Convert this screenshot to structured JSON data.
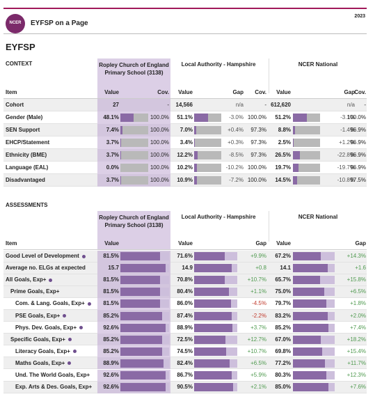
{
  "header": {
    "logo": "NCER",
    "title": "EYFSP on a Page",
    "year": "2023"
  },
  "page_title": "EYFSP",
  "columns": {
    "item": "Item",
    "value": "Value",
    "cov": "Cov.",
    "gap": "Gap"
  },
  "groups": {
    "school": "Ropley Church of England Primary School (3138)",
    "la": "Local Authority - Hampshire",
    "nat": "NCER National"
  },
  "context": {
    "section": "CONTEXT",
    "scale": [
      0,
      100
    ],
    "cohort": {
      "label": "Cohort",
      "school": 27,
      "school_cov": "-",
      "la": {
        "value": 14566,
        "label": "14,566"
      },
      "la_gap": "n/a",
      "la_cov": "-",
      "nat": {
        "value": 612620,
        "label": "612,620"
      },
      "nat_gap": "n/a",
      "nat_cov": "-"
    },
    "rows": [
      {
        "label": "Gender (Male)",
        "school": {
          "value": 48.1,
          "label": "48.1%"
        },
        "school_cov": {
          "value": 100.0,
          "label": "100.0%"
        },
        "la": {
          "value": 51.1,
          "label": "51.1%"
        },
        "la_gap": {
          "value": -3.0,
          "label": "-3.0%"
        },
        "la_cov": {
          "value": 100.0,
          "label": "100.0%"
        },
        "nat": {
          "value": 51.2,
          "label": "51.2%"
        },
        "nat_gap": {
          "value": -3.1,
          "label": "-3.1%"
        },
        "nat_cov": {
          "value": 100.0,
          "label": "100.0%"
        }
      },
      {
        "label": "SEN Support",
        "school": {
          "value": 7.4,
          "label": "7.4%"
        },
        "school_cov": {
          "value": 100.0,
          "label": "100.0%"
        },
        "la": {
          "value": 7.0,
          "label": "7.0%"
        },
        "la_gap": {
          "value": 0.4,
          "label": "+0.4%"
        },
        "la_cov": {
          "value": 97.3,
          "label": "97.3%"
        },
        "nat": {
          "value": 8.8,
          "label": "8.8%"
        },
        "nat_gap": {
          "value": -1.4,
          "label": "-1.4%"
        },
        "nat_cov": {
          "value": 96.9,
          "label": "96.9%"
        }
      },
      {
        "label": "EHCP/Statement",
        "school": {
          "value": 3.7,
          "label": "3.7%"
        },
        "school_cov": {
          "value": 100.0,
          "label": "100.0%"
        },
        "la": {
          "value": 3.4,
          "label": "3.4%"
        },
        "la_gap": {
          "value": 0.3,
          "label": "+0.3%"
        },
        "la_cov": {
          "value": 97.3,
          "label": "97.3%"
        },
        "nat": {
          "value": 2.5,
          "label": "2.5%"
        },
        "nat_gap": {
          "value": 1.2,
          "label": "+1.2%"
        },
        "nat_cov": {
          "value": 96.9,
          "label": "96.9%"
        }
      },
      {
        "label": "Ethnicity (BME)",
        "school": {
          "value": 3.7,
          "label": "3.7%"
        },
        "school_cov": {
          "value": 100.0,
          "label": "100.0%"
        },
        "la": {
          "value": 12.2,
          "label": "12.2%"
        },
        "la_gap": {
          "value": -8.5,
          "label": "-8.5%"
        },
        "la_cov": {
          "value": 97.3,
          "label": "97.3%"
        },
        "nat": {
          "value": 26.5,
          "label": "26.5%"
        },
        "nat_gap": {
          "value": -22.8,
          "label": "-22.8%"
        },
        "nat_cov": {
          "value": 96.9,
          "label": "96.9%"
        }
      },
      {
        "label": "Language (EAL)",
        "school": {
          "value": 0.0,
          "label": "0.0%"
        },
        "school_cov": {
          "value": 100.0,
          "label": "100.0%"
        },
        "la": {
          "value": 10.2,
          "label": "10.2%"
        },
        "la_gap": {
          "value": -10.2,
          "label": "-10.2%"
        },
        "la_cov": {
          "value": 100.0,
          "label": "100.0%"
        },
        "nat": {
          "value": 19.7,
          "label": "19.7%"
        },
        "nat_gap": {
          "value": -19.7,
          "label": "-19.7%"
        },
        "nat_cov": {
          "value": 96.9,
          "label": "96.9%"
        }
      },
      {
        "label": "Disadvantaged",
        "school": {
          "value": 3.7,
          "label": "3.7%"
        },
        "school_cov": {
          "value": 100.0,
          "label": "100.0%"
        },
        "la": {
          "value": 10.9,
          "label": "10.9%"
        },
        "la_gap": {
          "value": -7.2,
          "label": "-7.2%"
        },
        "la_cov": {
          "value": 100.0,
          "label": "100.0%"
        },
        "nat": {
          "value": 14.5,
          "label": "14.5%"
        },
        "nat_gap": {
          "value": -10.8,
          "label": "-10.8%"
        },
        "nat_cov": {
          "value": 97.5,
          "label": "97.5%"
        }
      }
    ]
  },
  "assessments": {
    "section": "ASSESSMENTS",
    "scale": [
      0,
      100
    ],
    "rows": [
      {
        "label": "Good Level of Development",
        "level": 0,
        "dot": true,
        "school": {
          "value": 81.5,
          "label": "81.5%"
        },
        "la": {
          "value": 71.6,
          "label": "71.6%"
        },
        "la_gap": {
          "value": 9.9,
          "label": "+9.9%"
        },
        "nat": {
          "value": 67.2,
          "label": "67.2%"
        },
        "nat_gap": {
          "value": 14.3,
          "label": "+14.3%"
        }
      },
      {
        "label": "Average no. ELGs at expected",
        "level": 0,
        "dot": false,
        "scale": [
          0,
          17
        ],
        "school": 15.7,
        "la": 14.9,
        "la_gap": {
          "value": 0.8,
          "label": "+0.8"
        },
        "nat": 14.1,
        "nat_gap": {
          "value": 1.6,
          "label": "+1.6"
        }
      },
      {
        "label": "All Goals, Exp+",
        "level": 0,
        "dot": true,
        "school": {
          "value": 81.5,
          "label": "81.5%"
        },
        "la": {
          "value": 70.8,
          "label": "70.8%"
        },
        "la_gap": {
          "value": 10.7,
          "label": "+10.7%"
        },
        "nat": {
          "value": 65.7,
          "label": "65.7%"
        },
        "nat_gap": {
          "value": 15.8,
          "label": "+15.8%"
        }
      },
      {
        "label": "Prime Goals, Exp+",
        "level": 1,
        "dot": false,
        "school": {
          "value": 81.5,
          "label": "81.5%"
        },
        "la": {
          "value": 80.4,
          "label": "80.4%"
        },
        "la_gap": {
          "value": 1.1,
          "label": "+1.1%"
        },
        "nat": {
          "value": 75.0,
          "label": "75.0%"
        },
        "nat_gap": {
          "value": 6.5,
          "label": "+6.5%"
        }
      },
      {
        "label": "Com. & Lang. Goals, Exp+",
        "level": 2,
        "dot": true,
        "school": {
          "value": 81.5,
          "label": "81.5%"
        },
        "la": {
          "value": 86.0,
          "label": "86.0%"
        },
        "la_gap": {
          "value": -4.5,
          "label": "-4.5%"
        },
        "nat": {
          "value": 79.7,
          "label": "79.7%"
        },
        "nat_gap": {
          "value": 1.8,
          "label": "+1.8%"
        }
      },
      {
        "label": "PSE Goals, Exp+",
        "level": 2,
        "dot": true,
        "school": {
          "value": 85.2,
          "label": "85.2%"
        },
        "la": {
          "value": 87.4,
          "label": "87.4%"
        },
        "la_gap": {
          "value": -2.2,
          "label": "-2.2%"
        },
        "nat": {
          "value": 83.2,
          "label": "83.2%"
        },
        "nat_gap": {
          "value": 2.0,
          "label": "+2.0%"
        }
      },
      {
        "label": "Phys. Dev. Goals, Exp+",
        "level": 2,
        "dot": true,
        "school": {
          "value": 92.6,
          "label": "92.6%"
        },
        "la": {
          "value": 88.9,
          "label": "88.9%"
        },
        "la_gap": {
          "value": 3.7,
          "label": "+3.7%"
        },
        "nat": {
          "value": 85.2,
          "label": "85.2%"
        },
        "nat_gap": {
          "value": 7.4,
          "label": "+7.4%"
        }
      },
      {
        "label": "Specific Goals, Exp+",
        "level": 1,
        "dot": true,
        "school": {
          "value": 85.2,
          "label": "85.2%"
        },
        "la": {
          "value": 72.5,
          "label": "72.5%"
        },
        "la_gap": {
          "value": 12.7,
          "label": "+12.7%"
        },
        "nat": {
          "value": 67.0,
          "label": "67.0%"
        },
        "nat_gap": {
          "value": 18.2,
          "label": "+18.2%"
        }
      },
      {
        "label": "Literacy Goals, Exp+",
        "level": 2,
        "dot": true,
        "school": {
          "value": 85.2,
          "label": "85.2%"
        },
        "la": {
          "value": 74.5,
          "label": "74.5%"
        },
        "la_gap": {
          "value": 10.7,
          "label": "+10.7%"
        },
        "nat": {
          "value": 69.8,
          "label": "69.8%"
        },
        "nat_gap": {
          "value": 15.4,
          "label": "+15.4%"
        }
      },
      {
        "label": "Maths Goals, Exp+",
        "level": 2,
        "dot": true,
        "school": {
          "value": 88.9,
          "label": "88.9%"
        },
        "la": {
          "value": 82.4,
          "label": "82.4%"
        },
        "la_gap": {
          "value": 6.5,
          "label": "+6.5%"
        },
        "nat": {
          "value": 77.2,
          "label": "77.2%"
        },
        "nat_gap": {
          "value": 11.7,
          "label": "+11.7%"
        }
      },
      {
        "label": "Und. The World Goals, Exp+",
        "level": 2,
        "dot": false,
        "school": {
          "value": 92.6,
          "label": "92.6%"
        },
        "la": {
          "value": 86.7,
          "label": "86.7%"
        },
        "la_gap": {
          "value": 5.9,
          "label": "+5.9%"
        },
        "nat": {
          "value": 80.3,
          "label": "80.3%"
        },
        "nat_gap": {
          "value": 12.3,
          "label": "+12.3%"
        }
      },
      {
        "label": "Exp. Arts & Des. Goals, Exp+",
        "level": 2,
        "dot": false,
        "school": {
          "value": 92.6,
          "label": "92.6%"
        },
        "la": {
          "value": 90.5,
          "label": "90.5%"
        },
        "la_gap": {
          "value": 2.1,
          "label": "+2.1%"
        },
        "nat": {
          "value": 85.0,
          "label": "85.0%"
        },
        "nat_gap": {
          "value": 7.6,
          "label": "+7.6%"
        }
      }
    ]
  }
}
